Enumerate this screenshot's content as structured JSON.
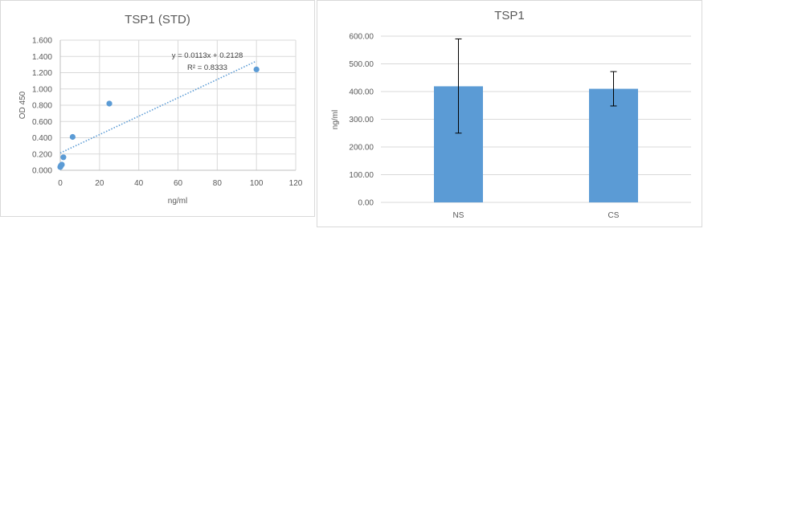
{
  "chart_data": [
    {
      "type": "scatter",
      "title": "TSP1 (STD)",
      "xlabel": "ng/ml",
      "ylabel": "OD 450",
      "xlim": [
        0,
        120
      ],
      "ylim": [
        0,
        1.6
      ],
      "x_ticks": [
        "0",
        "20",
        "40",
        "60",
        "80",
        "100",
        "120"
      ],
      "y_ticks": [
        "0.000",
        "0.200",
        "0.400",
        "0.600",
        "0.800",
        "1.000",
        "1.200",
        "1.400",
        "1.600"
      ],
      "grid": true,
      "points": [
        {
          "x": 0,
          "y": 0.04
        },
        {
          "x": 0.2,
          "y": 0.05
        },
        {
          "x": 0.4,
          "y": 0.06
        },
        {
          "x": 0.8,
          "y": 0.07
        },
        {
          "x": 1.6,
          "y": 0.16
        },
        {
          "x": 6.3,
          "y": 0.41
        },
        {
          "x": 25,
          "y": 0.82
        },
        {
          "x": 100,
          "y": 1.24
        }
      ],
      "trendline": {
        "type": "linear",
        "slope": 0.0113,
        "intercept": 0.2128,
        "x_range": [
          0,
          100
        ]
      },
      "equation_label": "y = 0.0113x + 0.2128",
      "r2_label": "R² = 0.8333",
      "colors": {
        "points": "#5b9bd5",
        "trendline": "#5b9bd5"
      }
    },
    {
      "type": "bar",
      "title": "TSP1",
      "xlabel": "",
      "ylabel": "ng/ml",
      "ylim": [
        0,
        600
      ],
      "y_ticks": [
        "0.00",
        "100.00",
        "200.00",
        "300.00",
        "400.00",
        "500.00",
        "600.00"
      ],
      "grid": true,
      "categories": [
        "NS",
        "CS"
      ],
      "values": [
        419,
        410
      ],
      "error_bars": [
        {
          "low": 250,
          "high": 590
        },
        {
          "low": 348,
          "high": 472
        }
      ],
      "colors": {
        "bars": "#5b9bd5"
      }
    }
  ]
}
